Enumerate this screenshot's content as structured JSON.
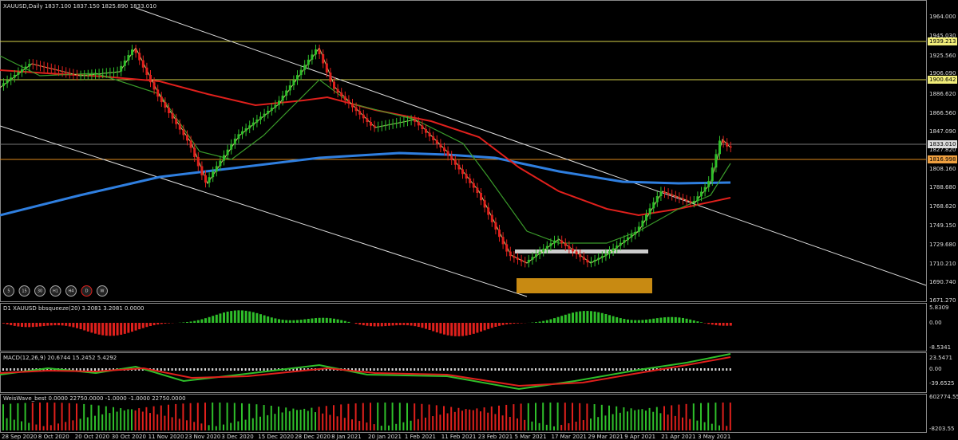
{
  "header": {
    "symbol": "XAUUSD,Daily",
    "quote": "1837.100 1837.150 1825.890 1833.010"
  },
  "price_axis": [
    "1964.000",
    "1945.030",
    "1925.560",
    "1906.090",
    "1886.620",
    "1866.560",
    "1847.090",
    "1827.820",
    "1808.160",
    "1788.680",
    "1768.620",
    "1749.150",
    "1729.680",
    "1710.210",
    "1690.740",
    "1671.270"
  ],
  "levels": [
    "1939.213",
    "1900.642",
    "1833.010",
    "1816.998"
  ],
  "timeframes": [
    "5",
    "15",
    "30",
    "H1",
    "H4",
    "D",
    "W"
  ],
  "panels": [
    {
      "title": "D1 XAUUSD bbsqueeze(20) 3.2081 3.2081 0.0000",
      "axis": [
        "5.8309",
        "0.00",
        "-8.5341"
      ]
    },
    {
      "title": "MACD(12,26,9) 20.6744 15.2452 5.4292",
      "axis": [
        "23.5471",
        "0.00",
        "-39.6525"
      ]
    },
    {
      "title": "WeisWave_best 0.0000 22750.0000 -1.0000 -1.0000 22750.0000",
      "axis": [
        "602774.55",
        "-8203.55"
      ]
    }
  ],
  "dates": [
    "28 Sep 2020",
    "8 Oct 2020",
    "20 Oct 2020",
    "30 Oct 2020",
    "11 Nov 2020",
    "23 Nov 2020",
    "3 Dec 2020",
    "15 Dec 2020",
    "28 Dec 2020",
    "8 Jan 2021",
    "20 Jan 2021",
    "1 Feb 2021",
    "11 Feb 2021",
    "23 Feb 2021",
    "5 Mar 2021",
    "17 Mar 2021",
    "29 Mar 2021",
    "9 Apr 2021",
    "21 Apr 2021",
    "3 May 2021"
  ]
}
